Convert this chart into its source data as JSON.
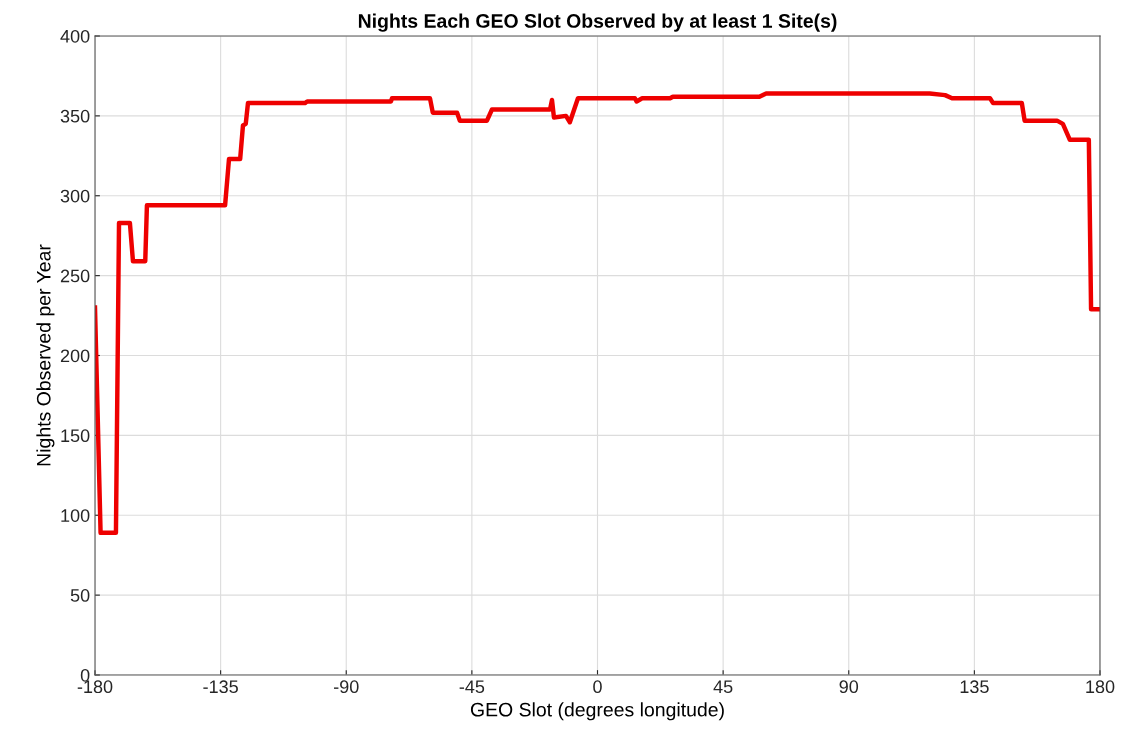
{
  "chart_data": {
    "type": "line",
    "title": "Nights Each GEO Slot Observed by at least 1 Site(s)",
    "xlabel": "GEO Slot (degrees longitude)",
    "ylabel": "Nights Observed per Year",
    "series": [
      {
        "color": "#ee0000",
        "x": [
          -180,
          -178,
          -172.5,
          -171.4,
          -167.5,
          -166.4,
          -162,
          -161.4,
          -133.4,
          -132,
          -128,
          -127,
          -126,
          -125.2,
          -104.8,
          -104,
          -74,
          -73.6,
          -60,
          -59,
          -50.3,
          -49.3,
          -39.6,
          -37.8,
          -17,
          -16.3,
          -15.6,
          -11.3,
          -9.9,
          -7,
          13.4,
          14,
          16,
          26,
          27,
          58,
          60.4,
          119,
          124.5,
          127,
          140.6,
          141.7,
          152,
          153,
          164.6,
          166.7,
          169.2,
          176,
          176.8,
          180
        ],
        "values": [
          230,
          89,
          89,
          283,
          283,
          259,
          259,
          294,
          294,
          323,
          323,
          344,
          345,
          358,
          358,
          359,
          359,
          361,
          361,
          352,
          352,
          347,
          347,
          354,
          354,
          360,
          349,
          350,
          346,
          361,
          361,
          359,
          361,
          361,
          362,
          362,
          364,
          364,
          363,
          361,
          361,
          358,
          358,
          347,
          347,
          345,
          335,
          335,
          229,
          229
        ]
      }
    ],
    "xlim": [
      -180,
      180
    ],
    "xticks": [
      -180,
      -135,
      -90,
      -45,
      0,
      45,
      90,
      135,
      180
    ],
    "ylim": [
      0,
      400
    ],
    "yticks": [
      0,
      50,
      100,
      150,
      200,
      250,
      300,
      350,
      400
    ],
    "grid": true,
    "line_style": "solid",
    "marker": "none"
  }
}
